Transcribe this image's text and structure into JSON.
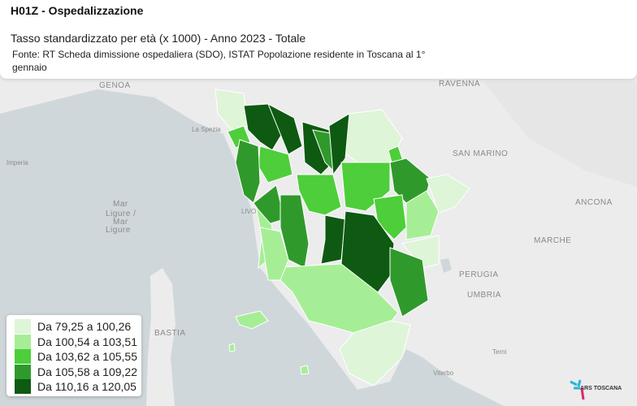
{
  "header": {
    "title": "H01Z - Ospedalizzazione",
    "subtitle": "Tasso standardizzato per età (x 1000) - Anno 2023 - Totale",
    "source": "Fonte: RT Scheda dimissione ospedaliera (SDO), ISTAT Popolazione residente in Toscana al 1° gennaio"
  },
  "legend": {
    "items": [
      {
        "label": "Da 79,25 a 100,26",
        "color": "#def5d7"
      },
      {
        "label": "Da 100,54 a 103,51",
        "color": "#a6ee95"
      },
      {
        "label": "Da 103,62 a 105,55",
        "color": "#4ece3a"
      },
      {
        "label": "Da 105,58 a 109,22",
        "color": "#2f9a2b"
      },
      {
        "label": "Da 110,16 a 120,05",
        "color": "#0e5a12"
      }
    ]
  },
  "map_labels": [
    "GENOA",
    "La Spezia",
    "Imperia",
    "Mar",
    "Ligure /",
    "Mar",
    "Ligure",
    "LIVO",
    "RAVENNA",
    "SAN MARINO",
    "ANCONA",
    "MARCHE",
    "PERUGIA",
    "UMBRIA",
    "BASTIA",
    "Terni",
    "Viterbo"
  ],
  "logo": "ARS TOSCANA"
}
